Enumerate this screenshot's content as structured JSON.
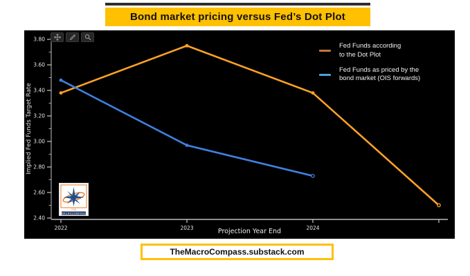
{
  "page": {
    "background": "#ffffff"
  },
  "title_banner": {
    "text": "Bond market pricing versus Fed’s Dot Plot",
    "background": "#FFC000",
    "text_color": "#111111"
  },
  "toolbar": {
    "icons": [
      "move-icon",
      "pencil-icon",
      "magnifier-icon"
    ]
  },
  "legend": {
    "position": "upper-right",
    "items": [
      {
        "line1": "Fed Funds according",
        "line2": "to the Dot Plot",
        "color": "#C6763F"
      },
      {
        "line1": "Fed Funds as priced by the",
        "line2": "bond market (OIS forwards)",
        "color": "#4AA3DC"
      }
    ]
  },
  "logo": {
    "word_the": "THE",
    "word_name": "MACROCOMPASS",
    "orange": "#E87722",
    "blue": "#1F4E8C",
    "bar_blue": "#1F3864"
  },
  "footer_banner": {
    "text": "TheMacroCompass.substack.com",
    "border_color": "#FFC000"
  },
  "chart_data": {
    "type": "line",
    "title": "Bond market pricing versus Fed’s Dot Plot",
    "xlabel": "Projection Year End",
    "ylabel": "Implied Fed Funds Target Rate",
    "ylim": [
      2.4,
      3.8
    ],
    "yticks": [
      "2.40",
      "2.60",
      "2.80",
      "3.00",
      "3.20",
      "3.40",
      "3.60",
      "3.80"
    ],
    "ytick_minor_step": 0.1,
    "x_categories": [
      "2022",
      "2023",
      "2024",
      ""
    ],
    "plot_background": "#000000",
    "grid": false,
    "legend_position": "upper right",
    "series": [
      {
        "name": "Fed Funds according to the Dot Plot",
        "color": "#FFA226",
        "values": [
          3.38,
          3.75,
          3.38,
          2.5
        ]
      },
      {
        "name": "Fed Funds as priced by the bond market (OIS forwards)",
        "color": "#4080E0",
        "values": [
          3.48,
          2.97,
          2.73,
          null
        ]
      }
    ]
  }
}
